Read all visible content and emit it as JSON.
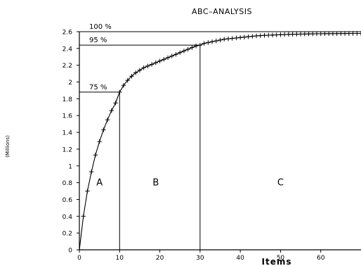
{
  "chart_data": {
    "type": "line",
    "title": "ABC–ANALYSIS",
    "xlabel": "Items",
    "ylabel": "(Millions)",
    "xlim": [
      0,
      70
    ],
    "ylim": [
      0,
      2.6
    ],
    "xticks": [
      {
        "value": 0,
        "label": "0"
      },
      {
        "value": 10,
        "label": "10"
      },
      {
        "value": 20,
        "label": "20"
      },
      {
        "value": 30,
        "label": "30"
      },
      {
        "value": 40,
        "label": "40"
      },
      {
        "value": 50,
        "label": "50"
      },
      {
        "value": 60,
        "label": "60"
      }
    ],
    "yticks": [
      {
        "value": 0,
        "label": "0"
      },
      {
        "value": 0.2,
        "label": "0.2"
      },
      {
        "value": 0.4,
        "label": "0.4"
      },
      {
        "value": 0.6,
        "label": "0.6"
      },
      {
        "value": 0.8,
        "label": "0.8"
      },
      {
        "value": 1.0,
        "label": "1"
      },
      {
        "value": 1.2,
        "label": "1.2"
      },
      {
        "value": 1.4,
        "label": "1.4"
      },
      {
        "value": 1.6,
        "label": "1.6"
      },
      {
        "value": 1.8,
        "label": "1.8"
      },
      {
        "value": 2.0,
        "label": "2"
      },
      {
        "value": 2.2,
        "label": "2.2"
      },
      {
        "value": 2.4,
        "label": "2.4"
      },
      {
        "value": 2.6,
        "label": "2.6"
      }
    ],
    "grid": false,
    "series": [
      {
        "x": [
          1,
          2,
          3,
          4,
          5,
          6,
          7,
          8,
          9,
          10,
          11,
          12,
          13,
          14,
          15,
          16,
          17,
          18,
          19,
          20,
          21,
          22,
          23,
          24,
          25,
          26,
          27,
          28,
          29,
          30,
          31,
          32,
          33,
          34,
          35,
          36,
          37,
          38,
          39,
          40,
          41,
          42,
          43,
          44,
          45,
          46,
          47,
          48,
          49,
          50,
          51,
          52,
          53,
          54,
          55,
          56,
          57,
          58,
          59,
          60,
          61,
          62,
          63,
          64,
          65,
          66,
          67,
          68,
          69,
          70
        ],
        "y": [
          0.4,
          0.7,
          0.93,
          1.13,
          1.29,
          1.43,
          1.55,
          1.66,
          1.75,
          1.88,
          1.96,
          2.02,
          2.07,
          2.11,
          2.14,
          2.17,
          2.19,
          2.21,
          2.23,
          2.25,
          2.27,
          2.29,
          2.31,
          2.33,
          2.35,
          2.37,
          2.39,
          2.41,
          2.43,
          2.44,
          2.46,
          2.47,
          2.48,
          2.49,
          2.5,
          2.51,
          2.515,
          2.52,
          2.525,
          2.53,
          2.535,
          2.54,
          2.545,
          2.55,
          2.553,
          2.556,
          2.558,
          2.56,
          2.562,
          2.564,
          2.566,
          2.568,
          2.569,
          2.57,
          2.571,
          2.572,
          2.573,
          2.574,
          2.575,
          2.575,
          2.576,
          2.576,
          2.577,
          2.577,
          2.578,
          2.578,
          2.578,
          2.579,
          2.579,
          2.579
        ],
        "marker": "+"
      }
    ],
    "reference_lines": [
      {
        "label": "100 %",
        "y": 2.6,
        "x_end": 70
      },
      {
        "label": "95 %",
        "y": 2.44,
        "x_end": 30
      },
      {
        "label": "75 %",
        "y": 1.88,
        "x_end": 10
      }
    ],
    "regions": [
      {
        "label": "A",
        "x_center": 5
      },
      {
        "label": "B",
        "x_center": 19
      },
      {
        "label": "C",
        "x_center": 50
      }
    ],
    "colors": {
      "line": "#000000",
      "background": "#ffffff"
    }
  }
}
